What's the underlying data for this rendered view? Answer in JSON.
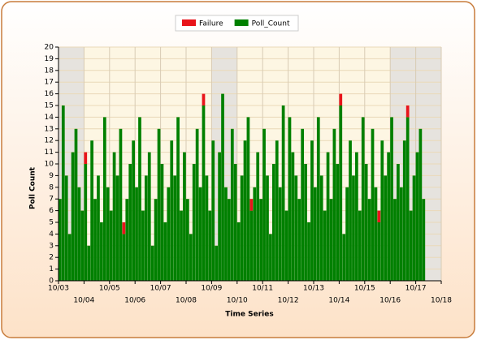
{
  "chart_data": {
    "type": "stacked_bar",
    "y_label": "Poll Count",
    "x_label": "Time Series",
    "x": [
      0,
      0.125,
      0.25,
      0.375,
      0.5,
      0.625,
      0.75,
      0.875,
      1,
      1.125,
      1.25,
      1.375,
      1.5,
      1.625,
      1.75,
      1.875,
      2,
      2.125,
      2.25,
      2.375,
      2.5,
      2.625,
      2.75,
      2.875,
      3,
      3.125,
      3.25,
      3.375,
      3.5,
      3.625,
      3.75,
      3.875,
      4,
      4.125,
      4.25,
      4.375,
      4.5,
      4.625,
      4.75,
      4.875,
      5,
      5.125,
      5.25,
      5.375,
      5.5,
      5.625,
      5.75,
      5.875,
      6,
      6.125,
      6.25,
      6.375,
      6.5,
      6.625,
      6.75,
      6.875,
      7,
      7.125,
      7.25,
      7.375,
      7.5,
      7.625,
      7.75,
      7.875,
      8,
      8.125,
      8.25,
      8.375,
      8.5,
      8.625,
      8.75,
      8.875,
      9,
      9.125,
      9.25,
      9.375,
      9.5,
      9.625,
      9.75,
      9.875,
      10,
      10.125,
      10.25,
      10.375,
      10.5,
      10.625,
      10.75,
      10.875,
      11,
      11.125,
      11.25,
      11.375,
      11.5,
      11.625,
      11.75,
      11.875,
      12,
      12.125,
      12.25,
      12.375,
      12.5,
      12.625,
      12.75,
      12.875,
      13,
      13.125,
      13.25,
      13.375,
      13.5,
      13.625,
      13.75,
      13.875,
      14,
      14.125,
      14.25
    ],
    "series": [
      {
        "name": "Poll_Count",
        "color": "#008000",
        "values": [
          7,
          15,
          9,
          4,
          11,
          13,
          8,
          6,
          10,
          3,
          12,
          7,
          9,
          5,
          14,
          8,
          6,
          11,
          9,
          13,
          4,
          7,
          10,
          12,
          8,
          14,
          6,
          9,
          11,
          3,
          7,
          13,
          10,
          5,
          8,
          12,
          9,
          14,
          6,
          11,
          7,
          4,
          10,
          13,
          8,
          15,
          9,
          6,
          12,
          3,
          11,
          16,
          8,
          7,
          13,
          10,
          5,
          9,
          12,
          14,
          6,
          8,
          11,
          7,
          13,
          9,
          4,
          10,
          12,
          8,
          15,
          6,
          14,
          11,
          9,
          7,
          13,
          10,
          5,
          12,
          8,
          14,
          9,
          6,
          11,
          7,
          13,
          10,
          15,
          4,
          8,
          12,
          9,
          11,
          6,
          14,
          10,
          7,
          13,
          8,
          5,
          12,
          9,
          11,
          14,
          7,
          10,
          8,
          12,
          14,
          6,
          9,
          11,
          13,
          7
        ]
      },
      {
        "name": "Failure",
        "color": "#e8141b",
        "values": [
          0,
          0,
          0,
          0,
          0,
          0,
          0,
          0,
          1,
          0,
          0,
          0,
          0,
          0,
          0,
          0,
          0,
          0,
          0,
          0,
          1,
          0,
          0,
          0,
          0,
          0,
          0,
          0,
          0,
          0,
          0,
          0,
          0,
          0,
          0,
          0,
          0,
          0,
          0,
          0,
          0,
          0,
          0,
          0,
          0,
          1,
          0,
          0,
          0,
          0,
          0,
          0,
          0,
          0,
          0,
          0,
          0,
          0,
          0,
          0,
          1,
          0,
          0,
          0,
          0,
          0,
          0,
          0,
          0,
          0,
          0,
          0,
          0,
          0,
          0,
          0,
          0,
          0,
          0,
          0,
          0,
          0,
          0,
          0,
          0,
          0,
          0,
          0,
          1,
          0,
          0,
          0,
          0,
          0,
          0,
          0,
          0,
          0,
          0,
          0,
          1,
          0,
          0,
          0,
          0,
          0,
          0,
          0,
          0,
          1,
          0,
          0,
          0,
          0,
          0
        ]
      }
    ],
    "legend_order": [
      "Failure",
      "Poll_Count"
    ],
    "xlim": [
      0,
      15
    ],
    "xticks": [
      {
        "value": 0,
        "label": "10/03"
      },
      {
        "value": 1,
        "label": "10/04"
      },
      {
        "value": 2,
        "label": "10/05"
      },
      {
        "value": 3,
        "label": "10/06"
      },
      {
        "value": 4,
        "label": "10/07"
      },
      {
        "value": 5,
        "label": "10/08"
      },
      {
        "value": 6,
        "label": "10/09"
      },
      {
        "value": 7,
        "label": "10/10"
      },
      {
        "value": 8,
        "label": "10/11"
      },
      {
        "value": 9,
        "label": "10/12"
      },
      {
        "value": 10,
        "label": "10/13"
      },
      {
        "value": 11,
        "label": "10/14"
      },
      {
        "value": 12,
        "label": "10/15"
      },
      {
        "value": 13,
        "label": "10/16"
      },
      {
        "value": 14,
        "label": "10/17"
      },
      {
        "value": 15,
        "label": "10/18"
      }
    ],
    "ylim": [
      0,
      20
    ],
    "yticks": [
      0,
      1,
      2,
      3,
      4,
      5,
      6,
      7,
      8,
      9,
      10,
      11,
      12,
      13,
      14,
      15,
      16,
      17,
      18,
      19,
      20
    ],
    "grid": true
  }
}
